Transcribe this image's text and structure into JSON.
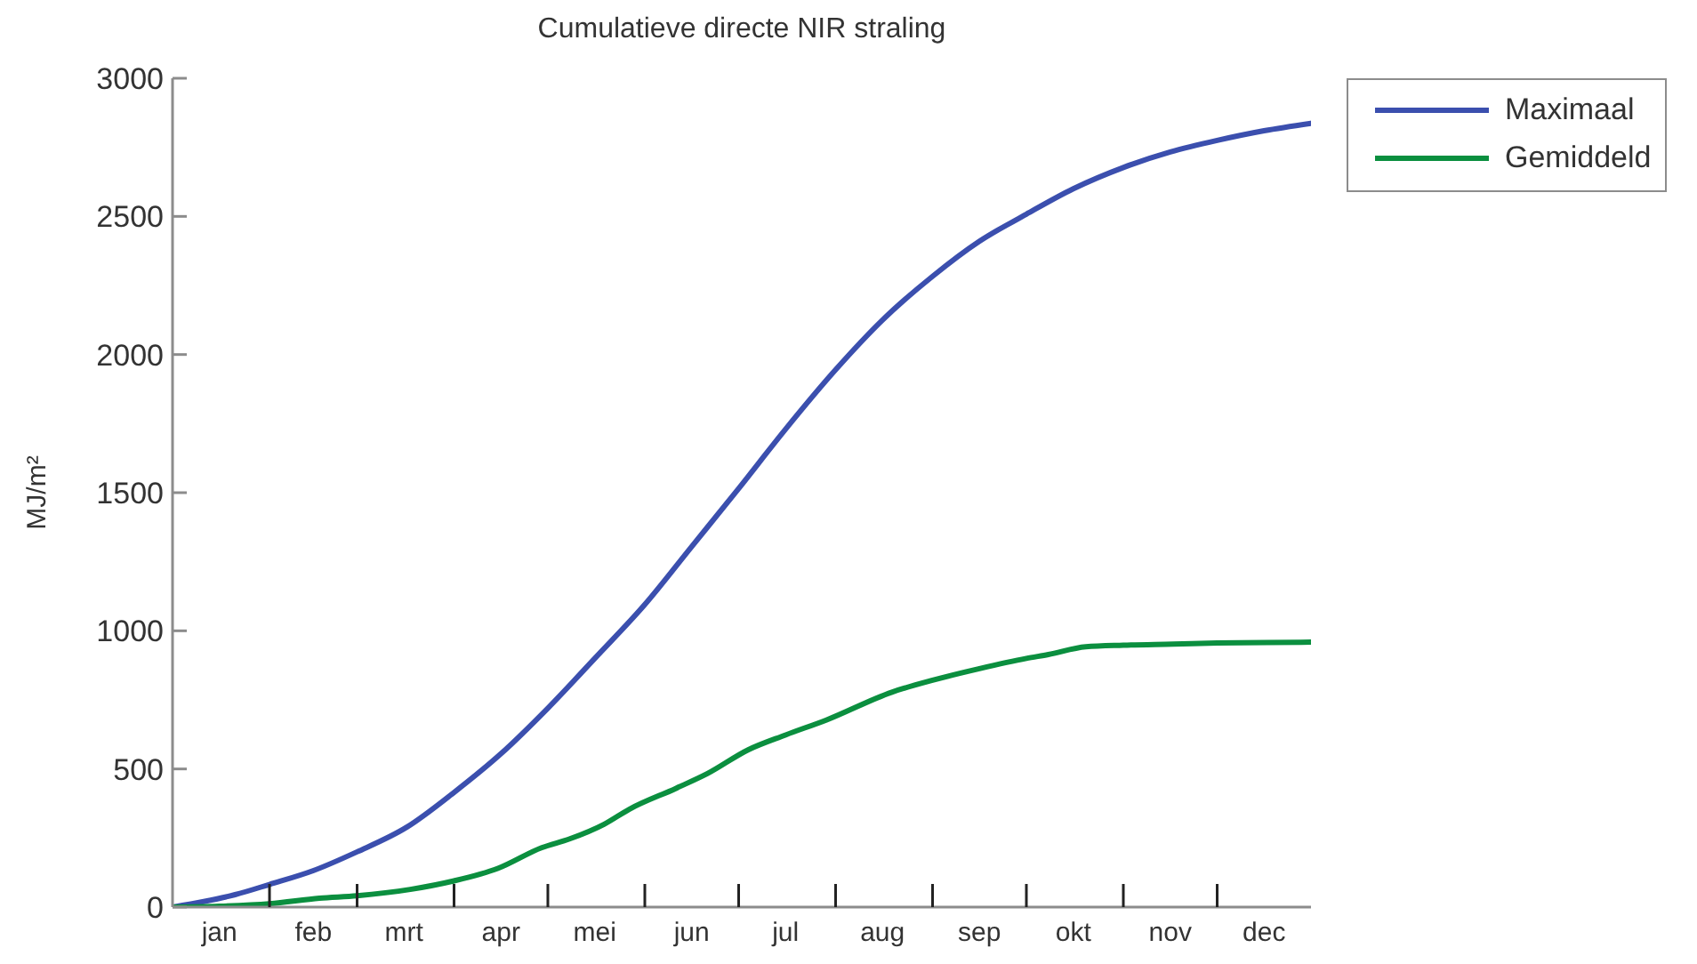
{
  "chart_data": {
    "type": "line",
    "title": "Cumulatieve directe NIR straling",
    "ylabel": "MJ/m²",
    "xlim": [
      "--01-01",
      "--12-31"
    ],
    "xticks": [
      {
        "value": "--01-16",
        "label": "jan"
      },
      {
        "value": "--02-01",
        "label": null
      },
      {
        "value": "--02-15",
        "label": "feb"
      },
      {
        "value": "--03-01",
        "label": null
      },
      {
        "value": "--03-16",
        "label": "mrt"
      },
      {
        "value": "--04-01",
        "label": null
      },
      {
        "value": "--04-16",
        "label": "apr"
      },
      {
        "value": "--05-01",
        "label": null
      },
      {
        "value": "--05-16",
        "label": "mei"
      },
      {
        "value": "--06-01",
        "label": null
      },
      {
        "value": "--06-16",
        "label": "jun"
      },
      {
        "value": "--07-01",
        "label": null
      },
      {
        "value": "--07-16",
        "label": "jul"
      },
      {
        "value": "--08-01",
        "label": null
      },
      {
        "value": "--08-16",
        "label": "aug"
      },
      {
        "value": "--09-01",
        "label": null
      },
      {
        "value": "--09-16",
        "label": "sep"
      },
      {
        "value": "--10-01",
        "label": null
      },
      {
        "value": "--10-16",
        "label": "okt"
      },
      {
        "value": "--11-01",
        "label": null
      },
      {
        "value": "--11-16",
        "label": "nov"
      },
      {
        "value": "--12-01",
        "label": null
      },
      {
        "value": "--12-16",
        "label": "dec"
      }
    ],
    "ylim": [
      0,
      3000
    ],
    "yticks": [
      0,
      500,
      1000,
      1500,
      2000,
      2500,
      3000
    ],
    "grid": false,
    "legend": "top right",
    "series": [
      {
        "name": "Maximaal",
        "color": "#3b4fae",
        "x": [
          "--01-01",
          "--01-11",
          "--01-21",
          "--02-01",
          "--02-15",
          "--03-01",
          "--03-17",
          "--04-01",
          "--04-16",
          "--05-01",
          "--05-16",
          "--06-01",
          "--06-16",
          "--07-01",
          "--07-16",
          "--08-01",
          "--08-16",
          "--09-01",
          "--09-16",
          "--10-01",
          "--10-16",
          "--11-01",
          "--11-16",
          "--12-01",
          "--12-16",
          "--12-31"
        ],
        "values": [
          0,
          20,
          45,
          82,
          132,
          200,
          290,
          415,
          555,
          720,
          900,
          1095,
          1305,
          1515,
          1730,
          1945,
          2125,
          2283,
          2410,
          2508,
          2600,
          2677,
          2733,
          2775,
          2810,
          2837
        ]
      },
      {
        "name": "Gemiddeld",
        "color": "#0b8f3f",
        "x": [
          "--01-01",
          "--01-16",
          "--02-01",
          "--02-17",
          "--03-01",
          "--03-18",
          "--04-01",
          "--04-15",
          "--04-29",
          "--05-08",
          "--05-19",
          "--05-27",
          "--06-11",
          "--06-21",
          "--07-04",
          "--07-16",
          "--07-29",
          "--08-19",
          "--09-01",
          "--09-16",
          "--10-01",
          "--10-08",
          "--10-20",
          "--11-01",
          "--11-17",
          "--12-01",
          "--12-17",
          "--12-31"
        ],
        "values": [
          0,
          3,
          12,
          32,
          41,
          64,
          95,
          140,
          215,
          247,
          300,
          354,
          430,
          483,
          569,
          623,
          677,
          778,
          821,
          863,
          900,
          914,
          942,
          948,
          952,
          956,
          958,
          959
        ]
      }
    ]
  }
}
